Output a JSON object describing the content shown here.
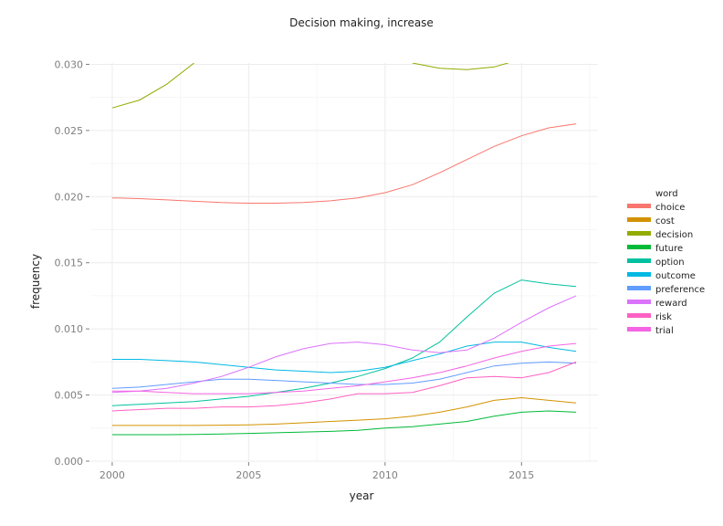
{
  "chart_data": {
    "type": "line",
    "title": "Decision making, increase",
    "xlabel": "year",
    "ylabel": "frequency",
    "xlim": [
      1999.2,
      2017.8
    ],
    "ylim": [
      0,
      0.0301
    ],
    "x_ticks": [
      2000,
      2005,
      2010,
      2015
    ],
    "y_ticks": [
      0,
      0.005,
      0.01,
      0.015,
      0.02,
      0.025,
      0.03
    ],
    "y_tick_labels": [
      "0.000",
      "0.005",
      "0.010",
      "0.015",
      "0.020",
      "0.025",
      "0.030"
    ],
    "grid": true,
    "legend": {
      "title": "word",
      "position": "right"
    },
    "x": [
      2000,
      2001,
      2002,
      2003,
      2004,
      2005,
      2006,
      2007,
      2008,
      2009,
      2010,
      2011,
      2012,
      2013,
      2014,
      2015,
      2016,
      2017
    ],
    "series": [
      {
        "name": "choice",
        "color": "#F8766D",
        "values": [
          0.0199,
          0.01985,
          0.01975,
          0.01965,
          0.01955,
          0.0195,
          0.0195,
          0.01955,
          0.01968,
          0.0199,
          0.0203,
          0.0209,
          0.0218,
          0.0228,
          0.0238,
          0.0246,
          0.0252,
          0.0255
        ]
      },
      {
        "name": "cost",
        "color": "#D39200",
        "values": [
          0.0027,
          0.0027,
          0.0027,
          0.0027,
          0.00272,
          0.00275,
          0.0028,
          0.0029,
          0.003,
          0.0031,
          0.0032,
          0.0034,
          0.0037,
          0.0041,
          0.0046,
          0.0048,
          0.0046,
          0.0044
        ]
      },
      {
        "name": "decision",
        "color": "#93AA00",
        "values": [
          0.0267,
          0.0273,
          0.0285,
          0.0301,
          null,
          null,
          null,
          null,
          null,
          null,
          null,
          0.0301,
          0.0297,
          0.0296,
          0.0298,
          0.0304,
          null,
          null
        ]
      },
      {
        "name": "future",
        "color": "#00BA38",
        "values": [
          0.002,
          0.002,
          0.002,
          0.00202,
          0.00205,
          0.0021,
          0.00215,
          0.0022,
          0.00225,
          0.00233,
          0.0025,
          0.0026,
          0.0028,
          0.003,
          0.0034,
          0.0037,
          0.0038,
          0.0037
        ]
      },
      {
        "name": "option",
        "color": "#00C19F",
        "values": [
          0.0042,
          0.0043,
          0.0044,
          0.0045,
          0.0047,
          0.0049,
          0.0052,
          0.0055,
          0.0059,
          0.0064,
          0.007,
          0.0078,
          0.009,
          0.0109,
          0.0127,
          0.0137,
          0.0134,
          0.0132
        ]
      },
      {
        "name": "outcome",
        "color": "#00B9E3",
        "values": [
          0.0077,
          0.0077,
          0.0076,
          0.0075,
          0.0073,
          0.0071,
          0.0069,
          0.0068,
          0.0067,
          0.0068,
          0.0071,
          0.0076,
          0.0081,
          0.0087,
          0.009,
          0.009,
          0.0086,
          0.0083
        ]
      },
      {
        "name": "preference",
        "color": "#619CFF",
        "values": [
          0.0055,
          0.0056,
          0.0058,
          0.006,
          0.0062,
          0.0062,
          0.0061,
          0.006,
          0.0059,
          0.0058,
          0.0058,
          0.0059,
          0.0062,
          0.0067,
          0.0072,
          0.0074,
          0.0075,
          0.0074
        ]
      },
      {
        "name": "reward",
        "color": "#DB72FB",
        "values": [
          0.0052,
          0.0053,
          0.0055,
          0.0059,
          0.0064,
          0.0071,
          0.0079,
          0.0085,
          0.0089,
          0.009,
          0.0088,
          0.0084,
          0.0082,
          0.0084,
          0.0093,
          0.0105,
          0.0116,
          0.0125
        ]
      },
      {
        "name": "risk",
        "color": "#FF61C3",
        "values": [
          0.0038,
          0.0039,
          0.004,
          0.004,
          0.0041,
          0.0041,
          0.0042,
          0.0044,
          0.0047,
          0.0051,
          0.0051,
          0.0052,
          0.0057,
          0.0063,
          0.0064,
          0.0063,
          0.0067,
          0.0075
        ]
      },
      {
        "name": "trial",
        "color": "#F564E3",
        "values": [
          0.0053,
          0.0053,
          0.0052,
          0.0051,
          0.0051,
          0.0051,
          0.0052,
          0.0053,
          0.0055,
          0.0057,
          0.006,
          0.0063,
          0.0067,
          0.0072,
          0.0078,
          0.0083,
          0.0087,
          0.0089
        ]
      }
    ]
  }
}
